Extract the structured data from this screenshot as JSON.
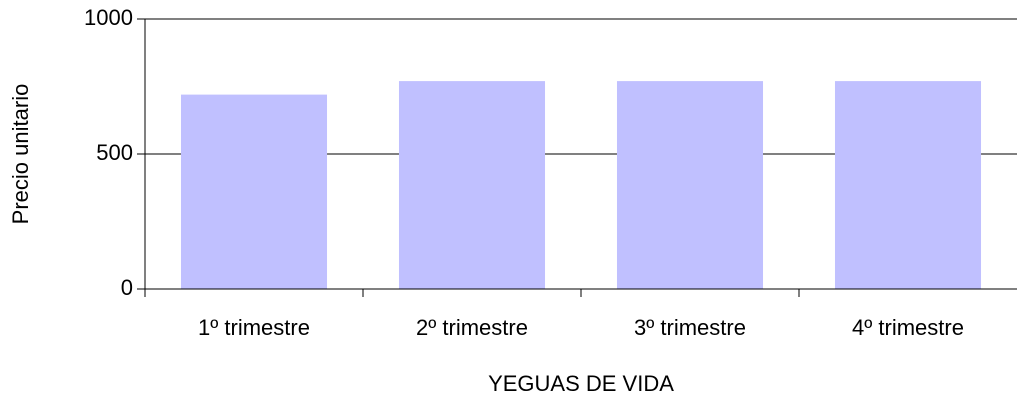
{
  "chart_data": {
    "type": "bar",
    "categories": [
      "1º trimestre",
      "2º trimestre",
      "3º trimestre",
      "4º trimestre"
    ],
    "values": [
      720,
      770,
      770,
      770
    ],
    "color": "#c0c0ff",
    "ylabel": "Precio unitario",
    "xlabel": "YEGUAS DE VIDA",
    "ylim": [
      0,
      1000
    ],
    "yticks": [
      0,
      500,
      1000
    ],
    "grid": true
  }
}
